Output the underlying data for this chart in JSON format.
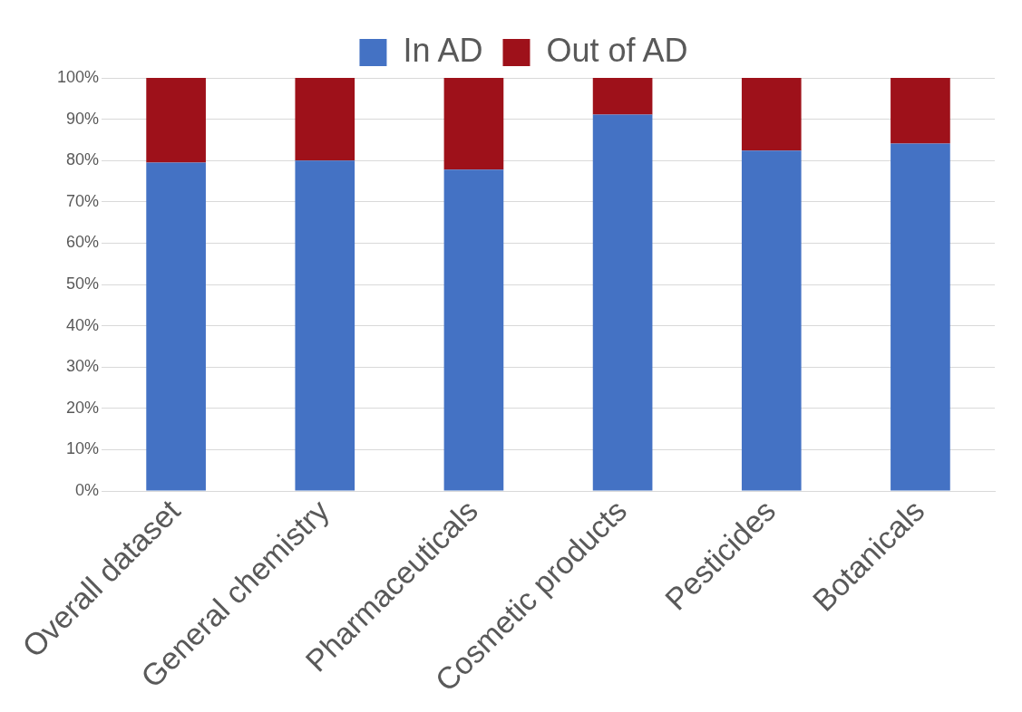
{
  "chart_data": {
    "type": "bar",
    "stacked": true,
    "categories": [
      "Overall dataset",
      "General chemistry",
      "Pharmaceuticals",
      "Cosmetic products",
      "Pesticides",
      "Botanicals"
    ],
    "series": [
      {
        "name": "In AD",
        "color": "#4472c4",
        "values": [
          79.5,
          80.0,
          77.8,
          91.1,
          82.4,
          84.1
        ]
      },
      {
        "name": "Out of AD",
        "color": "#9e111a",
        "values": [
          20.5,
          20.0,
          22.2,
          8.9,
          17.6,
          15.9
        ]
      }
    ],
    "ylim": [
      0,
      100
    ],
    "yticks": [
      {
        "value": 0,
        "label": "0%"
      },
      {
        "value": 10,
        "label": "10%"
      },
      {
        "value": 20,
        "label": "20%"
      },
      {
        "value": 30,
        "label": "30%"
      },
      {
        "value": 40,
        "label": "40%"
      },
      {
        "value": 50,
        "label": "50%"
      },
      {
        "value": 60,
        "label": "60%"
      },
      {
        "value": 70,
        "label": "70%"
      },
      {
        "value": 80,
        "label": "80%"
      },
      {
        "value": 90,
        "label": "90%"
      },
      {
        "value": 100,
        "label": "100%"
      }
    ],
    "grid": "y",
    "legend": "top"
  }
}
